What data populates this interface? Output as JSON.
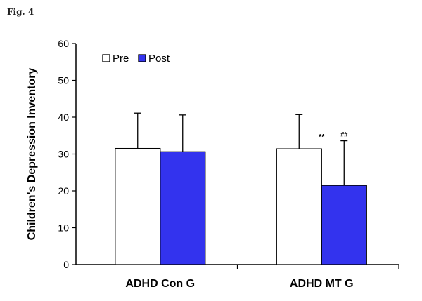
{
  "figure_label": "Fig. 4",
  "chart_data": {
    "type": "bar",
    "title": "",
    "xlabel": "",
    "ylabel": "Children's Depression Inventory",
    "ylim": [
      0,
      60
    ],
    "yticks": [
      0,
      10,
      20,
      30,
      40,
      50,
      60
    ],
    "categories": [
      "ADHD Con G",
      "ADHD MT G"
    ],
    "series": [
      {
        "name": "Pre",
        "color": "#ffffff",
        "values": [
          31.5,
          31.4
        ],
        "errors": [
          9.6,
          9.3
        ],
        "annotations": [
          "",
          ""
        ]
      },
      {
        "name": "Post",
        "color": "#3333ee",
        "values": [
          30.6,
          21.5
        ],
        "errors": [
          10.0,
          12.1
        ],
        "annotations": [
          "",
          "##"
        ]
      }
    ],
    "extra_annotations": [
      {
        "category": "ADHD MT G",
        "text": "**"
      }
    ],
    "legend": {
      "position": "top-left",
      "entries": [
        "Pre",
        "Post"
      ]
    }
  }
}
